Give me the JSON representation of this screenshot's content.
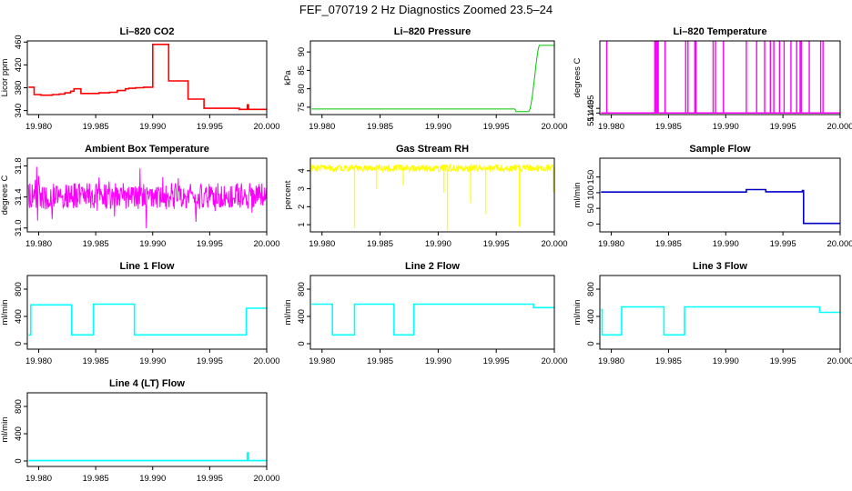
{
  "title": "FEF_070719  2 Hz Diagnostics Zoomed 23.5–24",
  "chart_data": [
    {
      "type": "line",
      "title": "Li–820 CO2",
      "ylabel": "Licor ppm",
      "color": "#ff0000",
      "xlim": [
        19.979,
        20.0
      ],
      "ylim": [
        333,
        462
      ],
      "xticks": [
        19.98,
        19.985,
        19.99,
        19.995,
        20.0
      ],
      "xticklabels": [
        "19.980",
        "19.985",
        "19.990",
        "19.995",
        "20.000"
      ],
      "yticks": [
        340,
        380,
        420,
        460
      ],
      "yticklabels": [
        "340",
        "380",
        "420",
        "460"
      ],
      "style": "step",
      "x": [
        19.9791,
        19.9796,
        19.9802,
        19.9807,
        19.9812,
        19.9818,
        19.9823,
        19.9828,
        19.9831,
        19.9837,
        19.9845,
        19.9853,
        19.9862,
        19.9869,
        19.9876,
        19.9879,
        19.9885,
        19.9892,
        19.99,
        19.9914,
        19.9931,
        19.9945,
        19.9962,
        19.9976,
        19.9982,
        19.9983,
        19.9984,
        19.999,
        20.0
      ],
      "y": [
        381,
        368,
        367,
        367,
        368,
        369,
        371,
        374,
        378,
        370,
        370,
        371,
        372,
        375,
        378,
        379,
        380,
        381,
        456,
        392,
        360,
        344,
        344,
        342,
        342,
        350,
        342,
        342,
        342
      ]
    },
    {
      "type": "line",
      "title": "Li–820 Pressure",
      "ylabel": "kPa",
      "color": "#00c800",
      "xlim": [
        19.979,
        20.0
      ],
      "ylim": [
        73,
        93
      ],
      "xticks": [
        19.98,
        19.985,
        19.99,
        19.995,
        20.0
      ],
      "xticklabels": [
        "19.980",
        "19.985",
        "19.990",
        "19.995",
        "20.000"
      ],
      "yticks": [
        75,
        80,
        85,
        90
      ],
      "yticklabels": [
        "75",
        "80",
        "85",
        "90"
      ],
      "style": "line",
      "x": [
        19.9791,
        19.9966,
        19.9967,
        19.9978,
        19.9979,
        19.998,
        19.9981,
        19.9982,
        19.9983,
        19.9984,
        19.9985,
        19.9986,
        19.9987,
        19.999,
        20.0
      ],
      "y": [
        74.5,
        74.5,
        73.8,
        73.8,
        74.5,
        76,
        78,
        80.5,
        83,
        86,
        88.5,
        90.5,
        91.8,
        91.8,
        91.8
      ]
    },
    {
      "type": "line",
      "title": "Li–820 Temperature",
      "ylabel": "degrees C",
      "color": "#ff00ff",
      "xlim": [
        19.979,
        20.0
      ],
      "ylim": [
        51.435,
        51.672
      ],
      "xticks": [
        19.98,
        19.985,
        19.99,
        19.995,
        20.0
      ],
      "xticklabels": [
        "19.980",
        "19.985",
        "19.990",
        "19.995",
        "20.000"
      ],
      "yticks": [
        51.44,
        51.455
      ],
      "yticklabels": [
        "51.440",
        "51.455"
      ],
      "style": "spikes",
      "baseline": 51.44,
      "peak": 51.671,
      "spikes": [
        19.9796,
        19.9838,
        19.9839,
        19.984,
        19.9841,
        19.9847,
        19.9865,
        19.9867,
        19.9873,
        19.9874,
        19.9889,
        19.9891,
        19.9898,
        19.9918,
        19.9927,
        19.9934,
        19.9939,
        19.9942,
        19.9947,
        19.9951,
        19.9957,
        19.9962,
        19.9965,
        19.9966,
        19.9973,
        19.9983,
        19.9985
      ]
    },
    {
      "type": "line",
      "title": "Ambient Box Temperature",
      "ylabel": "degrees C",
      "color": "#ff00ff",
      "xlim": [
        19.979,
        20.0
      ],
      "ylim": [
        30.95,
        31.9
      ],
      "xticks": [
        19.98,
        19.985,
        19.99,
        19.995,
        20.0
      ],
      "xticklabels": [
        "19.980",
        "19.985",
        "19.990",
        "19.995",
        "20.000"
      ],
      "yticks": [
        31.0,
        31.4,
        31.8
      ],
      "yticklabels": [
        "31.0",
        "31.4",
        "31.8"
      ],
      "style": "noise",
      "x_start": 19.9791,
      "x_end": 20.0,
      "center": 31.41,
      "amplitude": 0.17,
      "amplitude_max": 0.45
    },
    {
      "type": "line",
      "title": "Gas Stream RH",
      "ylabel": "percent",
      "color": "#ffff00",
      "xlim": [
        19.979,
        20.0
      ],
      "ylim": [
        0.6,
        4.7
      ],
      "xticks": [
        19.98,
        19.985,
        19.99,
        19.995,
        20.0
      ],
      "xticklabels": [
        "19.980",
        "19.985",
        "19.990",
        "19.995",
        "20.000"
      ],
      "yticks": [
        1,
        2,
        3,
        4
      ],
      "yticklabels": [
        "1",
        "2",
        "3",
        "4"
      ],
      "style": "noise-dips",
      "x_start": 19.9791,
      "x_end": 20.0,
      "center": 4.15,
      "amplitude": 0.2,
      "dips": [
        [
          19.9828,
          0.8
        ],
        [
          19.9847,
          3.0
        ],
        [
          19.987,
          3.2
        ],
        [
          19.9905,
          2.8
        ],
        [
          19.9908,
          0.7
        ],
        [
          19.9928,
          2.2
        ],
        [
          19.9941,
          1.6
        ],
        [
          19.997,
          0.9
        ],
        [
          19.9999,
          2.8
        ]
      ]
    },
    {
      "type": "line",
      "title": "Sample Flow",
      "ylabel": "ml/min",
      "color": "#0000c8",
      "xlim": [
        19.979,
        20.0
      ],
      "ylim": [
        -25,
        210
      ],
      "xticks": [
        19.98,
        19.985,
        19.99,
        19.995,
        20.0
      ],
      "xticklabels": [
        "19.980",
        "19.985",
        "19.990",
        "19.995",
        "20.000"
      ],
      "yticks": [
        0,
        50,
        100,
        150
      ],
      "yticklabels": [
        "0",
        "50",
        "100",
        "150"
      ],
      "style": "step",
      "x": [
        19.9791,
        19.9918,
        19.9935,
        19.9967,
        19.9968,
        20.0
      ],
      "y": [
        102,
        110,
        103,
        107,
        2,
        2
      ]
    },
    {
      "type": "line",
      "title": "Line 1 Flow",
      "ylabel": "ml/min",
      "color": "#00ffff",
      "xlim": [
        19.979,
        20.0
      ],
      "ylim": [
        -80,
        1000
      ],
      "xticks": [
        19.98,
        19.985,
        19.99,
        19.995,
        20.0
      ],
      "xticklabels": [
        "19.980",
        "19.985",
        "19.990",
        "19.995",
        "20.000"
      ],
      "yticks": [
        0,
        400,
        800
      ],
      "yticklabels": [
        "0",
        "400",
        "800"
      ],
      "style": "step",
      "x": [
        19.9791,
        19.9793,
        19.9829,
        19.9848,
        19.9884,
        19.9982,
        20.0
      ],
      "y": [
        130,
        570,
        130,
        580,
        130,
        520,
        520
      ]
    },
    {
      "type": "line",
      "title": "Line 2 Flow",
      "ylabel": "ml/min",
      "color": "#00ffff",
      "xlim": [
        19.979,
        20.0
      ],
      "ylim": [
        -80,
        1000
      ],
      "xticks": [
        19.98,
        19.985,
        19.99,
        19.995,
        20.0
      ],
      "xticklabels": [
        "19.980",
        "19.985",
        "19.990",
        "19.995",
        "20.000"
      ],
      "yticks": [
        0,
        400,
        800
      ],
      "yticklabels": [
        "0",
        "400",
        "800"
      ],
      "style": "step",
      "x": [
        19.9791,
        19.9809,
        19.9828,
        19.9862,
        19.9879,
        19.9982,
        20.0
      ],
      "y": [
        580,
        130,
        580,
        130,
        580,
        530,
        530
      ]
    },
    {
      "type": "line",
      "title": "Line 3 Flow",
      "ylabel": "ml/min",
      "color": "#00ffff",
      "xlim": [
        19.979,
        20.0
      ],
      "ylim": [
        -80,
        1000
      ],
      "xticks": [
        19.98,
        19.985,
        19.99,
        19.995,
        20.0
      ],
      "xticklabels": [
        "19.980",
        "19.985",
        "19.990",
        "19.995",
        "20.000"
      ],
      "yticks": [
        0,
        400,
        800
      ],
      "yticklabels": [
        "0",
        "400",
        "800"
      ],
      "style": "step",
      "x": [
        19.9791,
        19.9792,
        19.9809,
        19.9846,
        19.9864,
        19.9982,
        20.0
      ],
      "y": [
        500,
        130,
        540,
        130,
        540,
        460,
        460
      ]
    },
    {
      "type": "line",
      "title": "Line 4 (LT) Flow",
      "ylabel": "ml/min",
      "color": "#00ffff",
      "xlim": [
        19.979,
        20.0
      ],
      "ylim": [
        -80,
        1000
      ],
      "xticks": [
        19.98,
        19.985,
        19.99,
        19.995,
        20.0
      ],
      "xticklabels": [
        "19.980",
        "19.985",
        "19.990",
        "19.995",
        "20.000"
      ],
      "yticks": [
        0,
        400,
        800
      ],
      "yticklabels": [
        "0",
        "400",
        "800"
      ],
      "style": "step",
      "x": [
        19.9791,
        19.9982,
        19.9983,
        19.9984,
        20.0
      ],
      "y": [
        5,
        5,
        120,
        5,
        5
      ]
    }
  ]
}
